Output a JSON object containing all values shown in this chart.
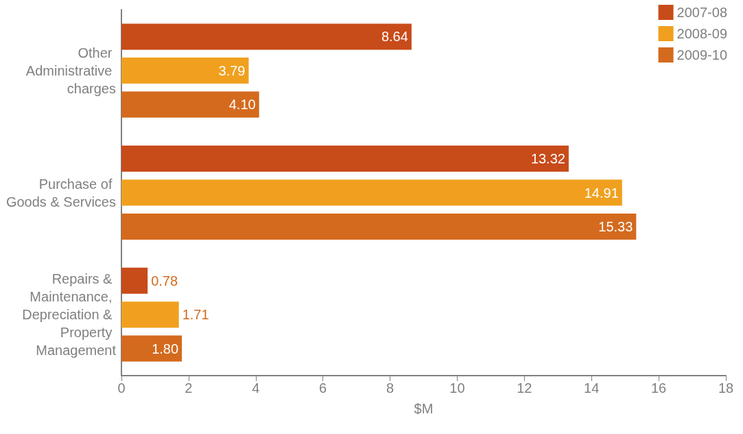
{
  "chart_data": {
    "type": "bar",
    "orientation": "horizontal",
    "categories": [
      "Other Administrative charges",
      "Purchase of Goods & Services",
      "Repairs & Maintenance, Depreciation & Property Management"
    ],
    "series": [
      {
        "name": "2007-08",
        "color": "#c84b1a",
        "values": [
          8.64,
          13.32,
          0.78
        ],
        "value_labels": [
          "8.64",
          "13.32",
          "0.78"
        ]
      },
      {
        "name": "2008-09",
        "color": "#f0a01e",
        "values": [
          3.79,
          14.91,
          1.71
        ],
        "value_labels": [
          "3.79",
          "14.91",
          "1.71"
        ]
      },
      {
        "name": "2009-10",
        "color": "#d46a1e",
        "values": [
          4.1,
          15.33,
          1.8
        ],
        "value_labels": [
          "4.10",
          "15.33",
          "1.80"
        ]
      }
    ],
    "xlabel": "$M",
    "xlim": [
      0,
      18
    ],
    "xticks": [
      0,
      2,
      4,
      6,
      8,
      10,
      12,
      14,
      16,
      18
    ],
    "grid": false,
    "legend": "top right"
  }
}
